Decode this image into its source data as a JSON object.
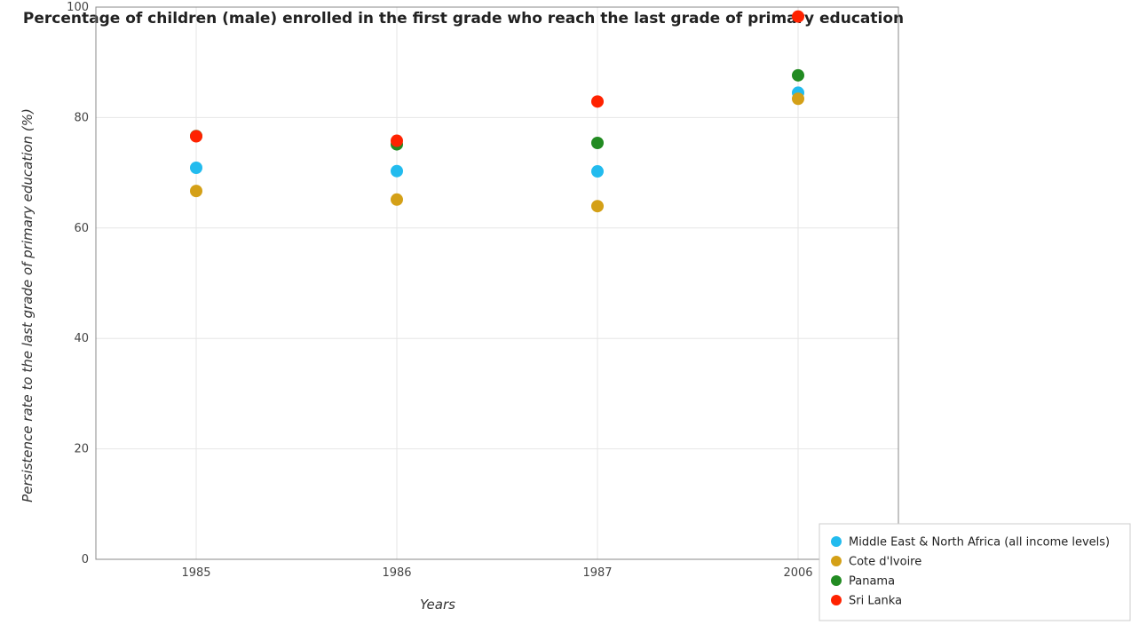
{
  "chart_data": {
    "type": "scatter",
    "title": "Percentage of children (male) enrolled in the first grade who reach the last grade of primary education",
    "xlabel": "Years",
    "ylabel": "Persistence rate to the last grade of primary education (%)",
    "categories": [
      "1985",
      "1986",
      "1987",
      "2006"
    ],
    "yticks": [
      "0",
      "20",
      "40",
      "60",
      "80",
      "100"
    ],
    "ylim": [
      0,
      100
    ],
    "grid": true,
    "legend_position": "bottom-right",
    "series": [
      {
        "name": "Middle East & North Africa (all income levels)",
        "color": "#22bbee",
        "values": [
          70.9,
          70.3,
          70.25,
          84.5
        ]
      },
      {
        "name": "Cote d'Ivoire",
        "color": "#d4a017",
        "values": [
          66.7,
          65.15,
          63.95,
          83.4
        ]
      },
      {
        "name": "Panama",
        "color": "#228b22",
        "values": [
          76.65,
          75.15,
          75.4,
          87.65
        ]
      },
      {
        "name": "Sri Lanka",
        "color": "#ff2200",
        "values": [
          76.6,
          75.8,
          82.9,
          98.3
        ]
      }
    ]
  }
}
